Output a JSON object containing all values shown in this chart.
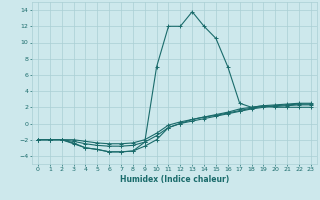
{
  "xlabel": "Humidex (Indice chaleur)",
  "xlim": [
    -0.5,
    23.5
  ],
  "ylim": [
    -5,
    15
  ],
  "yticks": [
    -4,
    -2,
    0,
    2,
    4,
    6,
    8,
    10,
    12,
    14
  ],
  "xticks": [
    0,
    1,
    2,
    3,
    4,
    5,
    6,
    7,
    8,
    9,
    10,
    11,
    12,
    13,
    14,
    15,
    16,
    17,
    18,
    19,
    20,
    21,
    22,
    23
  ],
  "bg_color": "#cde8ec",
  "grid_color": "#aacfd4",
  "line_color": "#1a6b6b",
  "series": [
    {
      "x": [
        0,
        1,
        2,
        3,
        4,
        5,
        6,
        7,
        8,
        9,
        10,
        11,
        12,
        13,
        14,
        15,
        16,
        17,
        18,
        19,
        20,
        21,
        22,
        23
      ],
      "y": [
        -2,
        -2,
        -2,
        -2.4,
        -3,
        -3.2,
        -3.5,
        -3.5,
        -3.4,
        -2.3,
        7,
        12,
        12,
        13.8,
        12,
        10.5,
        7,
        2.5,
        2,
        2.2,
        2,
        2,
        2,
        2
      ]
    },
    {
      "x": [
        0,
        1,
        2,
        3,
        4,
        5,
        6,
        7,
        8,
        9,
        10,
        11,
        12,
        13,
        14,
        15,
        16,
        17,
        18,
        19,
        20,
        21,
        22,
        23
      ],
      "y": [
        -2,
        -2,
        -2,
        -2.5,
        -3,
        -3.2,
        -3.5,
        -3.5,
        -3.4,
        -2.8,
        -2.0,
        -0.5,
        0.0,
        0.5,
        0.8,
        1.1,
        1.4,
        1.8,
        2.0,
        2.2,
        2.3,
        2.4,
        2.5,
        2.5
      ]
    },
    {
      "x": [
        0,
        1,
        2,
        3,
        4,
        5,
        6,
        7,
        8,
        9,
        10,
        11,
        12,
        13,
        14,
        15,
        16,
        17,
        18,
        19,
        20,
        21,
        22,
        23
      ],
      "y": [
        -2,
        -2,
        -2,
        -2.2,
        -2.5,
        -2.7,
        -2.8,
        -2.8,
        -2.7,
        -2.3,
        -1.5,
        -0.5,
        0.0,
        0.3,
        0.6,
        0.9,
        1.2,
        1.5,
        1.8,
        2.0,
        2.1,
        2.2,
        2.3,
        2.3
      ]
    },
    {
      "x": [
        0,
        1,
        2,
        3,
        4,
        5,
        6,
        7,
        8,
        9,
        10,
        11,
        12,
        13,
        14,
        15,
        16,
        17,
        18,
        19,
        20,
        21,
        22,
        23
      ],
      "y": [
        -2,
        -2,
        -2,
        -2.0,
        -2.2,
        -2.4,
        -2.5,
        -2.5,
        -2.4,
        -2.0,
        -1.2,
        -0.2,
        0.2,
        0.5,
        0.8,
        1.0,
        1.3,
        1.6,
        1.9,
        2.1,
        2.2,
        2.3,
        2.4,
        2.4
      ]
    }
  ]
}
